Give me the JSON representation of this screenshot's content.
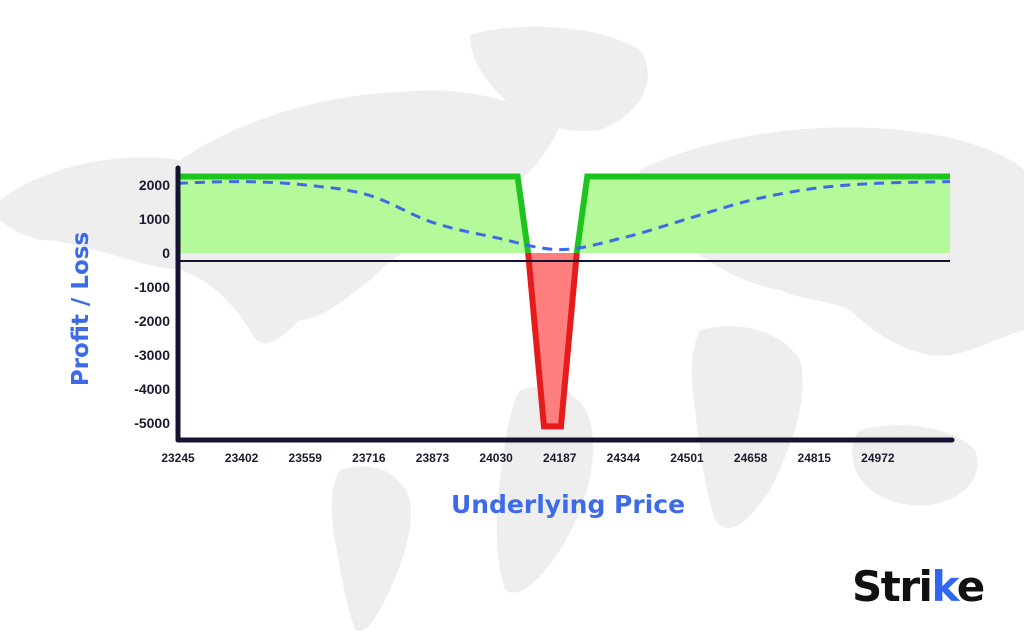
{
  "brand": {
    "logo_text": "Strike",
    "accent_color": "#2f66f2"
  },
  "colors": {
    "profit_line": "#1ec41e",
    "profit_fill": "#b5fa9a",
    "loss_line": "#e61b1b",
    "loss_fill": "#ff7f7f",
    "dashed_line": "#3d6be8",
    "axis": "#141432",
    "map": "#eeeeee"
  },
  "chart_data": {
    "type": "line",
    "xlabel": "Underlying Price",
    "ylabel": "Profit / Loss",
    "x_ticks": [
      "23245",
      "23402",
      "23559",
      "23716",
      "23873",
      "24030",
      "24187",
      "24344",
      "24501",
      "24658",
      "24815",
      "24972"
    ],
    "y_ticks": [
      "2000",
      "1000",
      "0",
      "-1000",
      "-2000",
      "-3000",
      "-4000",
      "-5000"
    ],
    "xlim": [
      23245,
      25150
    ],
    "ylim": [
      -5500,
      2500
    ],
    "grid": false,
    "series": [
      {
        "style": "solid",
        "points": [
          [
            23245,
            2250
          ],
          [
            24083,
            2250
          ],
          [
            24109,
            0
          ],
          [
            24148,
            -5100
          ],
          [
            24190,
            -5100
          ],
          [
            24229,
            0
          ],
          [
            24255,
            2250
          ],
          [
            25150,
            2250
          ]
        ]
      },
      {
        "style": "dashed",
        "points": [
          [
            23245,
            2050
          ],
          [
            23402,
            2100
          ],
          [
            23559,
            2000
          ],
          [
            23716,
            1700
          ],
          [
            23873,
            900
          ],
          [
            24030,
            450
          ],
          [
            24187,
            100
          ],
          [
            24344,
            450
          ],
          [
            24501,
            1000
          ],
          [
            24658,
            1550
          ],
          [
            24815,
            1900
          ],
          [
            24972,
            2050
          ],
          [
            25150,
            2100
          ]
        ]
      }
    ]
  }
}
